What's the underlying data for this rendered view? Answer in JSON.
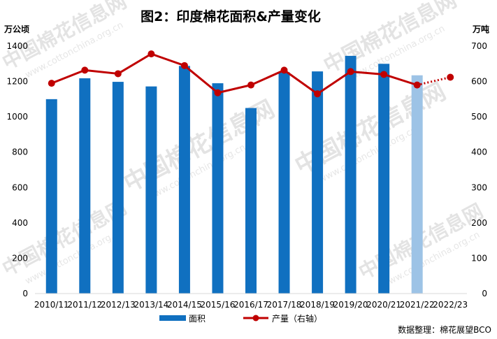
{
  "chart_data": {
    "type": "bar",
    "title": "图2：印度棉花面积&产量变化",
    "ylabel_left": "万公顷",
    "ylabel_right": "万吨",
    "categories": [
      "2010/11",
      "2011/12",
      "2012/13",
      "2013/14",
      "2014/15",
      "2015/16",
      "2016/17",
      "2017/18",
      "2018/19",
      "2019/20",
      "2020/21",
      "2021/22",
      "2022/23"
    ],
    "ylim_left": [
      0,
      1400
    ],
    "ylim_right": [
      0,
      700
    ],
    "yticks_left": [
      "0",
      "200",
      "400",
      "600",
      "800",
      "1000",
      "1200",
      "1400"
    ],
    "yticks_right": [
      "0",
      "100",
      "200",
      "300",
      "400",
      "500",
      "600",
      "700"
    ],
    "series": [
      {
        "name": "面积",
        "kind": "bar",
        "axis": "left",
        "color": "#1070c0",
        "values": [
          1100,
          1218,
          1198,
          1172,
          1288,
          1190,
          1050,
          1252,
          1257,
          1345,
          1300,
          1235,
          null
        ],
        "estimated_color": "#9dc3e6",
        "estimated_index": 11
      },
      {
        "name": "产量（右轴）",
        "kind": "line",
        "axis": "right",
        "color": "#c00000",
        "values": [
          595,
          632,
          622,
          678,
          645,
          568,
          590,
          632,
          565,
          628,
          620,
          590,
          612
        ],
        "dotted_from_index": 11
      }
    ],
    "grid": false,
    "legend_position": "bottom"
  },
  "source_note": "数据整理：棉花展望BCO",
  "watermark": {
    "brand": "中国棉花信息网",
    "url": "www.cottonchina.org.cn"
  }
}
